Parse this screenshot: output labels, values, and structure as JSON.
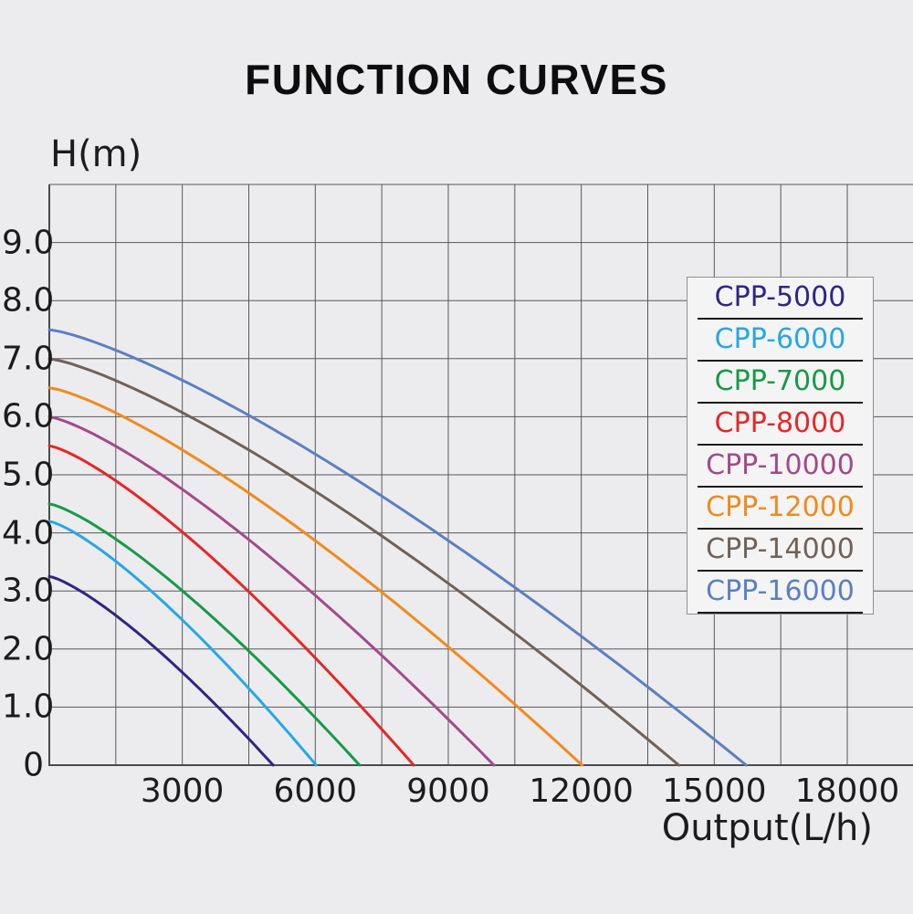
{
  "title": "FUNCTION CURVES",
  "chart_data": {
    "type": "line",
    "title": "FUNCTION CURVES",
    "x_axis": {
      "label": "Output(L/h)",
      "min": 0,
      "max": 19500,
      "grid_interval": 1500,
      "ticks": [
        {
          "value": 3000,
          "label": "3000"
        },
        {
          "value": 6000,
          "label": "6000"
        },
        {
          "value": 9000,
          "label": "9000"
        },
        {
          "value": 12000,
          "label": "12000"
        },
        {
          "value": 15000,
          "label": "15000"
        },
        {
          "value": 18000,
          "label": "18000"
        }
      ]
    },
    "y_axis": {
      "label": "H(m)",
      "min": 0,
      "max": 10,
      "grid_interval": 1,
      "ticks": [
        {
          "value": 9,
          "label": "9.0"
        },
        {
          "value": 8,
          "label": "8.0"
        },
        {
          "value": 7,
          "label": "7.0"
        },
        {
          "value": 6,
          "label": "6.0"
        },
        {
          "value": 5,
          "label": "5.0"
        },
        {
          "value": 4,
          "label": "4.0"
        },
        {
          "value": 3,
          "label": "3.0"
        },
        {
          "value": 2,
          "label": "2.0"
        },
        {
          "value": 1,
          "label": "1.0"
        },
        {
          "value": 0,
          "label": "0"
        }
      ]
    },
    "grid": true,
    "legend_position": "upper right",
    "curve_shape_exponent": 1.3,
    "series": [
      {
        "label": "CPP-5000",
        "color": "#2f2585",
        "head_at_zero_flow_m": 3.25,
        "max_output_lh": 5050
      },
      {
        "label": "CPP-6000",
        "color": "#27a7e4",
        "head_at_zero_flow_m": 4.2,
        "max_output_lh": 6020
      },
      {
        "label": "CPP-7000",
        "color": "#169a47",
        "head_at_zero_flow_m": 4.5,
        "max_output_lh": 7000
      },
      {
        "label": "CPP-8000",
        "color": "#e52628",
        "head_at_zero_flow_m": 5.5,
        "max_output_lh": 8220
      },
      {
        "label": "CPP-10000",
        "color": "#a4498a",
        "head_at_zero_flow_m": 6.0,
        "max_output_lh": 10030
      },
      {
        "label": "CPP-12000",
        "color": "#f18a1c",
        "head_at_zero_flow_m": 6.5,
        "max_output_lh": 12020
      },
      {
        "label": "CPP-14000",
        "color": "#6f6259",
        "head_at_zero_flow_m": 7.0,
        "max_output_lh": 14200
      },
      {
        "label": "CPP-16000",
        "color": "#5c7fc3",
        "head_at_zero_flow_m": 7.5,
        "max_output_lh": 15720
      }
    ]
  },
  "colors": {
    "background": "#ececee",
    "grid_line": "#59595b",
    "axis_line": "#4a4a4c",
    "legend_background": "#f4f4f4",
    "legend_border": "#8f8f91",
    "legend_underline": "#1a1a1a",
    "text": "#1c1c1e"
  }
}
